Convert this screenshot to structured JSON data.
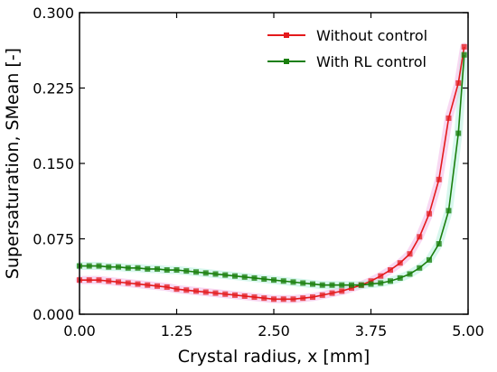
{
  "chart_data": {
    "type": "line",
    "title": "",
    "xlabel": "Crystal radius, x [mm]",
    "ylabel": "Supersaturation, SMean [-]",
    "xlim": [
      0.0,
      5.0
    ],
    "ylim": [
      0.0,
      0.3
    ],
    "xticks": [
      "0.00",
      "1.25",
      "2.50",
      "3.75",
      "5.00"
    ],
    "yticks": [
      "0.000",
      "0.075",
      "0.150",
      "0.225",
      "0.300"
    ],
    "grid": false,
    "legend_position": "top-right",
    "series": [
      {
        "name": "Without control",
        "color": "#e41a1c",
        "marker": "square",
        "x": [
          0.0,
          0.125,
          0.25,
          0.375,
          0.5,
          0.625,
          0.75,
          0.875,
          1.0,
          1.125,
          1.25,
          1.375,
          1.5,
          1.625,
          1.75,
          1.875,
          2.0,
          2.125,
          2.25,
          2.375,
          2.5,
          2.625,
          2.75,
          2.875,
          3.0,
          3.125,
          3.25,
          3.375,
          3.5,
          3.625,
          3.75,
          3.875,
          4.0,
          4.125,
          4.25,
          4.375,
          4.5,
          4.625,
          4.75,
          4.875,
          4.95
        ],
        "y": [
          0.034,
          0.034,
          0.034,
          0.033,
          0.032,
          0.031,
          0.03,
          0.029,
          0.028,
          0.027,
          0.025,
          0.024,
          0.023,
          0.022,
          0.021,
          0.02,
          0.019,
          0.018,
          0.017,
          0.016,
          0.015,
          0.015,
          0.015,
          0.016,
          0.017,
          0.019,
          0.021,
          0.023,
          0.026,
          0.029,
          0.033,
          0.038,
          0.044,
          0.051,
          0.06,
          0.077,
          0.1,
          0.134,
          0.195,
          0.23,
          0.266
        ]
      },
      {
        "name": "With RL control",
        "color": "#1a7f0d",
        "marker": "square",
        "x": [
          0.0,
          0.125,
          0.25,
          0.375,
          0.5,
          0.625,
          0.75,
          0.875,
          1.0,
          1.125,
          1.25,
          1.375,
          1.5,
          1.625,
          1.75,
          1.875,
          2.0,
          2.125,
          2.25,
          2.375,
          2.5,
          2.625,
          2.75,
          2.875,
          3.0,
          3.125,
          3.25,
          3.375,
          3.5,
          3.625,
          3.75,
          3.875,
          4.0,
          4.125,
          4.25,
          4.375,
          4.5,
          4.625,
          4.75,
          4.875,
          4.95
        ],
        "y": [
          0.048,
          0.048,
          0.048,
          0.047,
          0.047,
          0.046,
          0.046,
          0.045,
          0.045,
          0.044,
          0.044,
          0.043,
          0.042,
          0.041,
          0.04,
          0.039,
          0.038,
          0.037,
          0.036,
          0.035,
          0.034,
          0.033,
          0.032,
          0.031,
          0.03,
          0.029,
          0.029,
          0.029,
          0.029,
          0.029,
          0.03,
          0.031,
          0.033,
          0.036,
          0.04,
          0.046,
          0.054,
          0.07,
          0.103,
          0.18,
          0.258
        ]
      }
    ]
  }
}
